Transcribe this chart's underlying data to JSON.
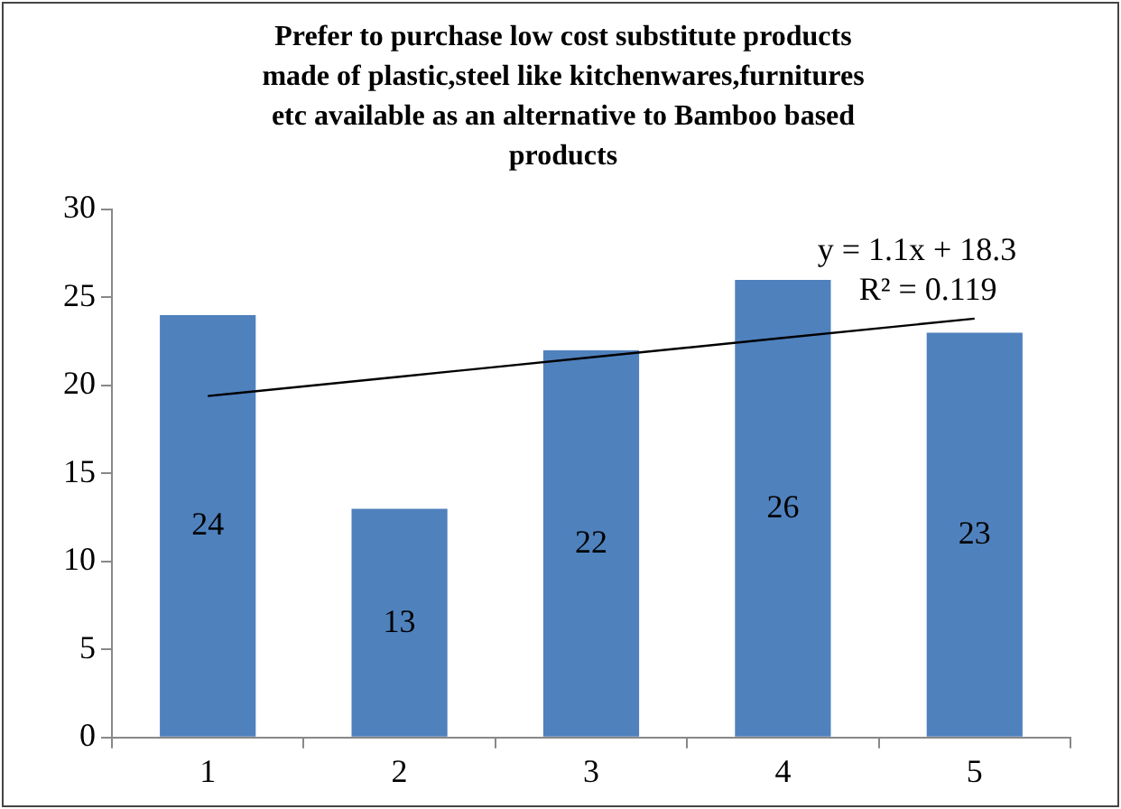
{
  "chart_data": {
    "type": "bar",
    "title": "Prefer to purchase low cost substitute products made of plastic,steel like kitchenwares,furnitures etc  available as an alternative to Bamboo based products",
    "categories": [
      "1",
      "2",
      "3",
      "4",
      "5"
    ],
    "series": [
      {
        "color": "#4f81bd",
        "values": [
          24,
          13,
          22,
          26,
          23
        ],
        "value_labels": [
          "24",
          "13",
          "22",
          "26",
          "23"
        ]
      },
      {
        "type": "line",
        "color": "#000000",
        "marker": "none",
        "values": [
          19.4,
          20.5,
          21.6,
          22.7,
          23.8
        ]
      }
    ],
    "ylim": [
      0,
      30
    ],
    "yticks": [
      0,
      5,
      10,
      15,
      20,
      25,
      30
    ],
    "grid": false,
    "legend": false,
    "annotations": [
      "y = 1.1x + 18.3",
      "R² = 0.119"
    ]
  }
}
